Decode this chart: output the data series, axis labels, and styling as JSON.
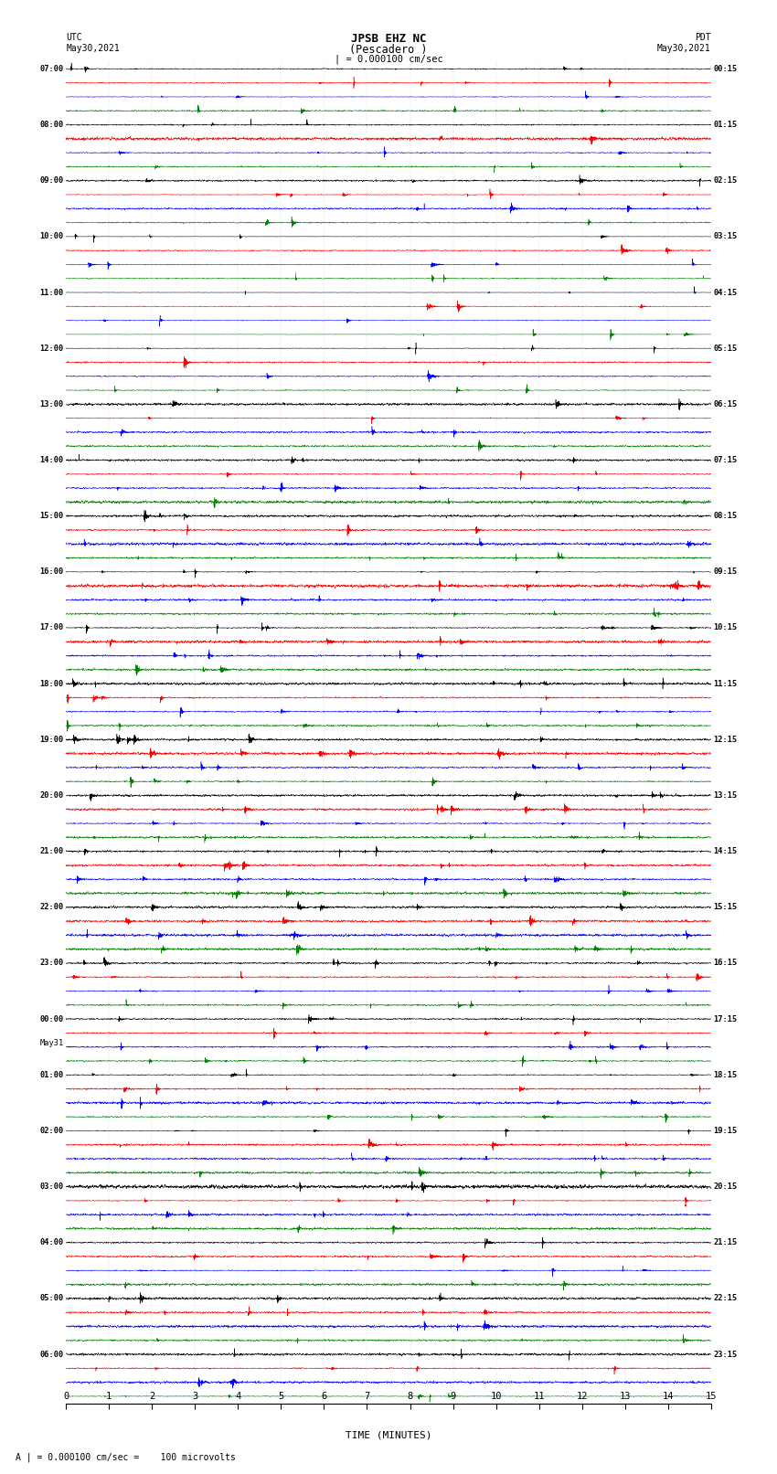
{
  "title_line1": "JPSB EHZ NC",
  "title_line2": "(Pescadero )",
  "scale_label": "| = 0.000100 cm/sec",
  "bottom_label": "A | = 0.000100 cm/sec =    100 microvolts",
  "xlabel": "TIME (MINUTES)",
  "utc_label": "UTC\nMay30,2021",
  "pdt_label": "PDT\nMay30,2021",
  "may31_label": "May31",
  "left_times": [
    "07:00",
    "08:00",
    "09:00",
    "10:00",
    "11:00",
    "12:00",
    "13:00",
    "14:00",
    "15:00",
    "16:00",
    "17:00",
    "18:00",
    "19:00",
    "20:00",
    "21:00",
    "22:00",
    "23:00",
    "00:00",
    "01:00",
    "02:00",
    "03:00",
    "04:00",
    "05:00",
    "06:00"
  ],
  "right_times": [
    "00:15",
    "01:15",
    "02:15",
    "03:15",
    "04:15",
    "05:15",
    "06:15",
    "07:15",
    "08:15",
    "09:15",
    "10:15",
    "11:15",
    "12:15",
    "13:15",
    "14:15",
    "15:15",
    "16:15",
    "17:15",
    "18:15",
    "19:15",
    "20:15",
    "21:15",
    "22:15",
    "23:15"
  ],
  "colors": [
    "black",
    "red",
    "blue",
    "green"
  ],
  "n_rows": 24,
  "traces_per_row": 4,
  "fig_width": 8.5,
  "fig_height": 16.13,
  "background_color": "white",
  "x_ticks": [
    0,
    1,
    2,
    3,
    4,
    5,
    6,
    7,
    8,
    9,
    10,
    11,
    12,
    13,
    14,
    15
  ],
  "seed": 42
}
